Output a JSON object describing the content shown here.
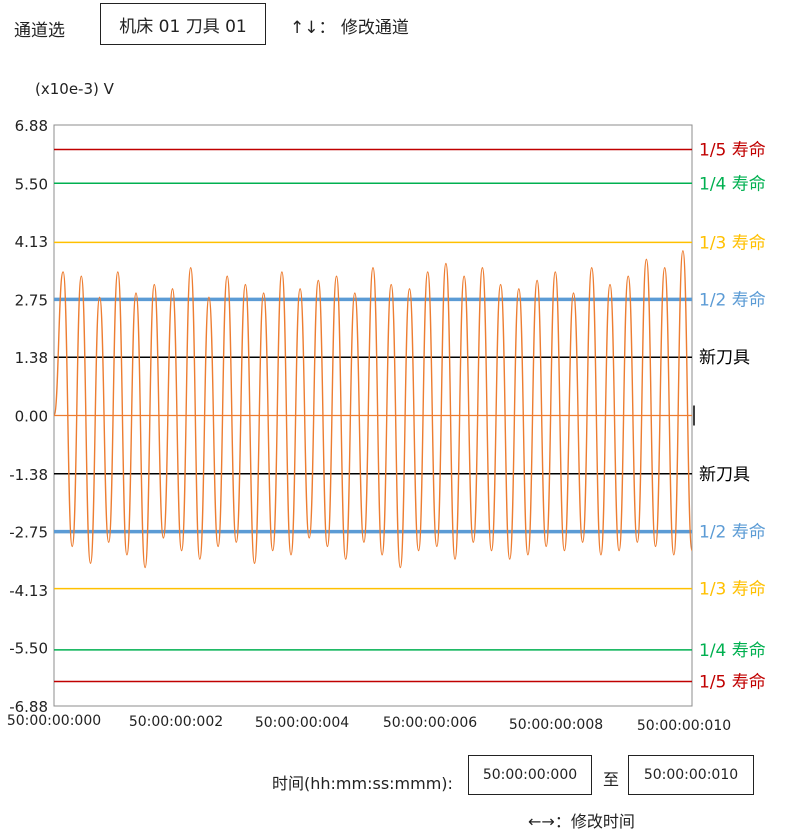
{
  "header": {
    "channel_label": "通道选",
    "channel_value": "机床 01 刀具 01",
    "channel_hint": "↑↓： 修改通道"
  },
  "unit_label": "(x10e-3) V",
  "footer": {
    "time_label": "时间(hh:mm:ss:mmm):",
    "start_time": "50:00:00:000",
    "to_label": "至",
    "end_time": "50:00:00:010",
    "time_hint": "←→：修改时间"
  },
  "colors": {
    "signal": "#ed7d31",
    "life_1_5": "#c00000",
    "life_1_4": "#00b050",
    "life_1_3": "#ffc000",
    "life_1_2": "#5b9bd5",
    "new_tool": "#000000"
  },
  "chart_data": {
    "type": "line",
    "ylabel": "(x10e-3) V",
    "ylim": [
      -6.88,
      6.88
    ],
    "yticks": [
      "6.88",
      "5.50",
      "4.13",
      "2.75",
      "1.38",
      "0.00",
      "-1.38",
      "-2.75",
      "-4.13",
      "-5.50",
      "-6.88"
    ],
    "xlim": [
      "50:00:00:000",
      "50:00:00:010"
    ],
    "xticks": [
      "50:00:00:000",
      "50:00:00:002",
      "50:00:00:004",
      "50:00:00:006",
      "50:00:00:008",
      "50:00:00:010"
    ],
    "grid": false,
    "thresholds": [
      {
        "label": "1/5 寿命",
        "value": 6.3,
        "color": "#c00000"
      },
      {
        "label": "1/4 寿命",
        "value": 5.5,
        "color": "#00b050"
      },
      {
        "label": "1/3 寿命",
        "value": 4.1,
        "color": "#ffc000"
      },
      {
        "label": "1/2 寿命",
        "value": 2.75,
        "color": "#5b9bd5"
      },
      {
        "label": "新刀具",
        "value": 1.38,
        "color": "#000000"
      },
      {
        "label": "新刀具",
        "value": -1.38,
        "color": "#000000"
      },
      {
        "label": "1/2 寿命",
        "value": -2.75,
        "color": "#5b9bd5"
      },
      {
        "label": "1/3 寿命",
        "value": -4.1,
        "color": "#ffc000"
      },
      {
        "label": "1/4 寿命",
        "value": -5.55,
        "color": "#00b050"
      },
      {
        "label": "1/5 寿命",
        "value": -6.3,
        "color": "#c00000"
      }
    ],
    "series": [
      {
        "color": "#ed7d31",
        "x_ms_start": 0,
        "x_ms_end": 10,
        "values": [
          0,
          3.4,
          -3.1,
          3.3,
          -3.5,
          2.8,
          -3.0,
          3.4,
          -3.3,
          2.9,
          -3.6,
          3.1,
          -2.9,
          3.0,
          -3.2,
          3.5,
          -3.4,
          2.8,
          -3.1,
          3.3,
          -3.0,
          3.1,
          -3.5,
          2.9,
          -3.2,
          3.4,
          -3.3,
          3.0,
          -2.9,
          3.2,
          -3.1,
          3.3,
          -3.4,
          2.9,
          -3.0,
          3.5,
          -3.3,
          3.1,
          -3.6,
          3.0,
          -3.2,
          3.4,
          -3.1,
          3.6,
          -3.4,
          3.3,
          -3.0,
          3.5,
          -3.2,
          3.1,
          -3.4,
          3.0,
          -3.3,
          3.2,
          -3.1,
          3.4,
          -3.2,
          2.9,
          -3.0,
          3.5,
          -3.3,
          3.1,
          -3.2,
          3.3,
          -3.0,
          3.7,
          -3.1,
          3.5,
          -3.3,
          3.9,
          -3.2
        ]
      }
    ]
  }
}
